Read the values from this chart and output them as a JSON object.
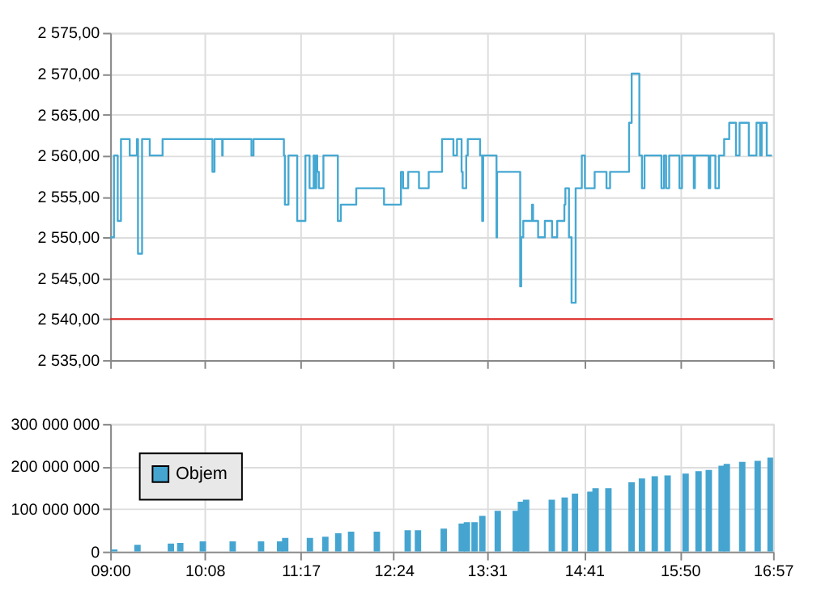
{
  "chart_data": [
    {
      "type": "step",
      "tick_labels": "y",
      "grid": true,
      "xlim": [
        9,
        16.95
      ],
      "xticks": [
        {
          "value": 9,
          "label": null
        },
        {
          "value": 10.133,
          "label": null
        },
        {
          "value": 11.283,
          "label": null
        },
        {
          "value": 12.4,
          "label": null
        },
        {
          "value": 13.517,
          "label": null
        },
        {
          "value": 14.683,
          "label": null
        },
        {
          "value": 15.833,
          "label": null
        },
        {
          "value": 16.95,
          "label": null
        }
      ],
      "ylim": [
        2535,
        2575
      ],
      "yticks": [
        {
          "value": 2535,
          "label": "2 535,00"
        },
        {
          "value": 2540,
          "label": "2 540,00"
        },
        {
          "value": 2545,
          "label": "2 545,00"
        },
        {
          "value": 2550,
          "label": "2 550,00"
        },
        {
          "value": 2555,
          "label": "2 555,00"
        },
        {
          "value": 2560,
          "label": "2 560,00"
        },
        {
          "value": 2565,
          "label": "2 565,00"
        },
        {
          "value": 2570,
          "label": "2 570,00"
        },
        {
          "value": 2575,
          "label": "2 575,00"
        }
      ],
      "ref_lines": [
        {
          "axis": "y",
          "value": 2540,
          "color": "#e0201c"
        }
      ],
      "series": [
        {
          "color": "#45a8d2",
          "x": [
            9.0,
            9.045,
            9.09,
            9.129,
            9.234,
            9.32,
            9.333,
            9.382,
            9.474,
            9.628,
            10.226,
            10.251,
            10.343,
            10.349,
            10.694,
            10.719,
            11.083,
            11.095,
            11.138,
            11.243,
            11.341,
            11.391,
            11.44,
            11.452,
            11.471,
            11.483,
            11.502,
            11.557,
            11.73,
            11.766,
            11.951,
            12.284,
            12.487,
            12.512,
            12.574,
            12.703,
            12.82,
            12.98,
            13.116,
            13.159,
            13.214,
            13.227,
            13.27,
            13.288,
            13.436,
            13.461,
            13.473,
            13.633,
            13.64,
            13.917,
            13.929,
            13.954,
            14.059,
            14.071,
            14.132,
            14.213,
            14.299,
            14.361,
            14.447,
            14.459,
            14.502,
            14.533,
            14.582,
            14.656,
            14.693,
            14.81,
            14.952,
            14.995,
            15.223,
            15.254,
            15.346,
            15.377,
            15.408,
            15.611,
            15.642,
            15.667,
            15.704,
            15.827,
            15.858,
            15.999,
            16.012,
            16.178,
            16.196,
            16.258,
            16.301,
            16.363,
            16.424,
            16.505,
            16.548,
            16.659,
            16.751,
            16.794,
            16.813,
            16.874,
            16.936
          ],
          "values": [
            2550,
            2560,
            2552,
            2562,
            2560,
            2562,
            2548,
            2562,
            2560,
            2562,
            2558,
            2562,
            2560,
            2562,
            2560,
            2562,
            2560,
            2554,
            2560,
            2552,
            2560,
            2556,
            2560,
            2556,
            2560,
            2558,
            2556,
            2560,
            2552,
            2554,
            2556,
            2554,
            2558,
            2556,
            2558,
            2556,
            2558,
            2562,
            2560,
            2562,
            2558,
            2556,
            2560,
            2562,
            2560,
            2552,
            2560,
            2550,
            2558,
            2544,
            2550,
            2552,
            2554,
            2552,
            2550,
            2552,
            2550,
            2552,
            2554,
            2556,
            2550,
            2542,
            2556,
            2560,
            2556,
            2558,
            2556,
            2558,
            2564,
            2570,
            2560,
            2556,
            2560,
            2556,
            2560,
            2556,
            2560,
            2556,
            2560,
            2556,
            2560,
            2556,
            2560,
            2556,
            2560,
            2562,
            2564,
            2560,
            2564,
            2560,
            2564,
            2560,
            2564,
            2560,
            2560
          ]
        }
      ]
    },
    {
      "type": "bar",
      "grid": true,
      "legend": "top left",
      "xlim": [
        9,
        16.95
      ],
      "xticks": [
        {
          "value": 9,
          "label": "09:00"
        },
        {
          "value": 10.133,
          "label": "10:08"
        },
        {
          "value": 11.283,
          "label": "11:17"
        },
        {
          "value": 12.4,
          "label": "12:24"
        },
        {
          "value": 13.517,
          "label": "13:31"
        },
        {
          "value": 14.683,
          "label": "14:41"
        },
        {
          "value": 15.833,
          "label": "15:50"
        },
        {
          "value": 16.95,
          "label": "16:57"
        }
      ],
      "ylim": [
        0,
        300000000
      ],
      "yticks": [
        0,
        {
          "value": 100000000,
          "label": "100 000 000"
        },
        {
          "value": 200000000,
          "label": "200 000 000"
        },
        {
          "value": 300000000,
          "label": "300 000 000"
        }
      ],
      "series": [
        {
          "name": "Objem",
          "color": "#45a5d0",
          "x": [
            9.049,
            9.327,
            9.728,
            9.84,
            10.111,
            10.469,
            10.809,
            11.037,
            11.099,
            11.395,
            11.58,
            11.735,
            11.889,
            12.198,
            12.568,
            12.691,
            13.0,
            13.216,
            13.278,
            13.37,
            13.463,
            13.648,
            13.864,
            13.926,
            13.988,
            14.296,
            14.451,
            14.574,
            14.759,
            14.821,
            14.975,
            15.253,
            15.377,
            15.531,
            15.685,
            15.901,
            16.056,
            16.179,
            16.333,
            16.395,
            16.58,
            16.765,
            16.92
          ],
          "values": [
            5000000,
            16000000,
            19000000,
            20000000,
            24000000,
            24000000,
            24000000,
            24000000,
            32000000,
            32000000,
            35000000,
            43000000,
            47000000,
            47000000,
            50000000,
            50000000,
            54000000,
            66000000,
            69000000,
            69000000,
            84000000,
            96000000,
            96000000,
            117000000,
            122000000,
            122000000,
            127000000,
            136000000,
            141000000,
            149000000,
            149000000,
            163000000,
            172000000,
            177000000,
            179000000,
            183000000,
            189000000,
            192000000,
            202000000,
            206000000,
            211000000,
            213000000,
            221000000
          ]
        }
      ]
    }
  ]
}
